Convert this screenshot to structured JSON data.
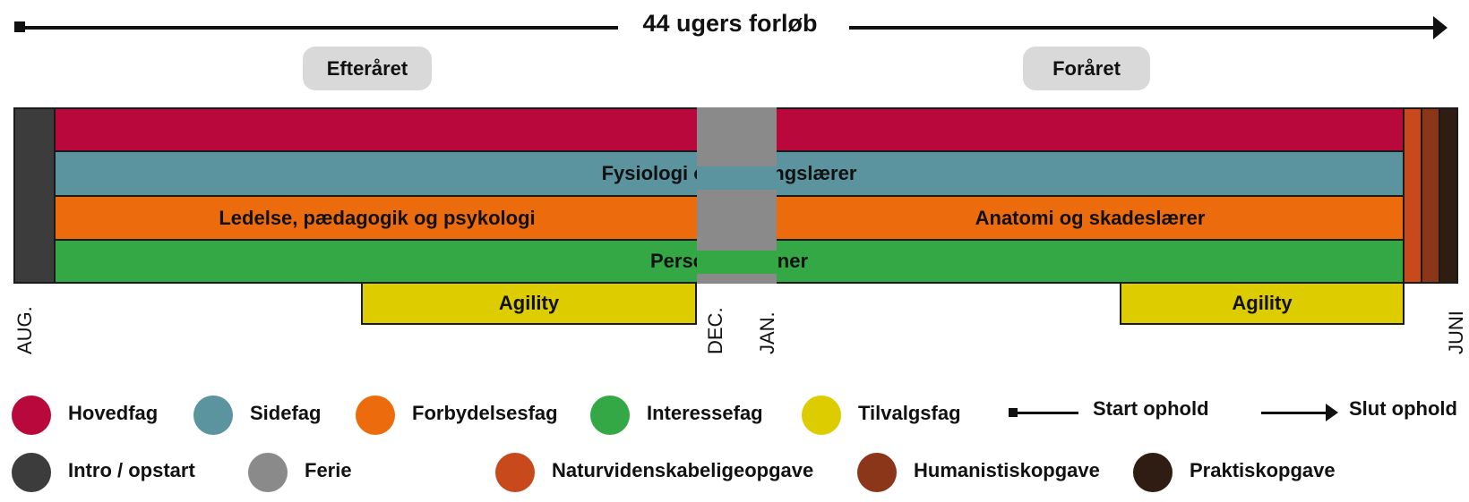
{
  "title": "44 ugers forløb",
  "seasons": {
    "autumn": "Efteråret",
    "spring": "Foråret"
  },
  "rows": {
    "row2": "Fysiologi og træningslærer",
    "row3_left": "Ledelse, pædagogik og psykologi",
    "row3_right": "Anatomi og skadeslærer",
    "row4": "Personlig træner",
    "agility_left": "Agility",
    "agility_right": "Agility"
  },
  "months": {
    "aug": "AUG.",
    "dec": "DEC.",
    "jan": "JAN.",
    "juni": "JUNI"
  },
  "legend": {
    "hovedfag": "Hovedfag",
    "sidefag": "Sidefag",
    "forbydelsesfag": "Forbydelsesfag",
    "interessefag": "Interessefag",
    "tilvalgsfag": "Tilvalgsfag",
    "start": "Start ophold",
    "slut": "Slut ophold",
    "intro": "Intro / opstart",
    "ferie": "Ferie",
    "natur": "Naturvidenskabeligeopgave",
    "human": "Humanistiskopgave",
    "praktisk": "Praktiskopgave"
  },
  "colors": {
    "hovedfag": "#b8083c",
    "sidefag": "#5b939e",
    "forbydelsesfag": "#ec6b0c",
    "interessefag": "#33a845",
    "tilvalgsfag": "#ddcc00",
    "intro": "#3c3c3c",
    "ferie": "#8a8a8a",
    "natur": "#c8491c",
    "human": "#8b3519",
    "praktisk": "#2f1d14"
  }
}
